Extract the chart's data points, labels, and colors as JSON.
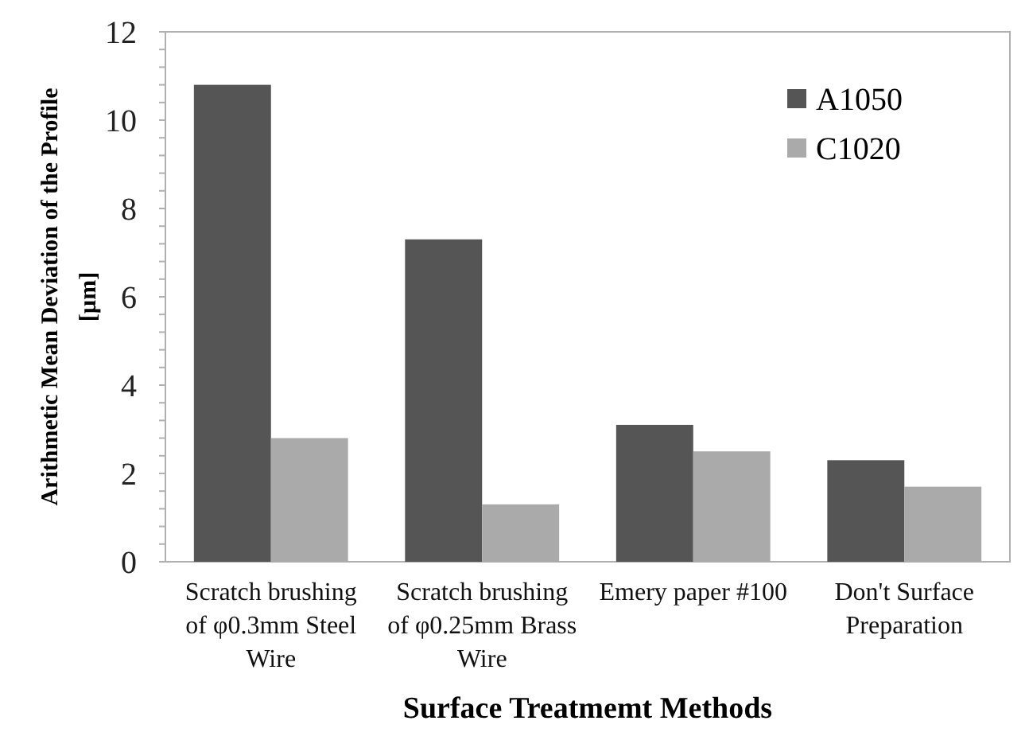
{
  "chart_data": {
    "type": "bar",
    "xlabel": "Surface Treatmemt Methods",
    "ylabel": "Arithmetic Mean Deviation of the Profile [µm]",
    "categories": [
      "Scratch brushing of φ0.3mm Steel Wire",
      "Scratch brushing of φ0.25mm Brass Wire",
      "Emery paper #100",
      "Don't Surface Preparation"
    ],
    "series": [
      {
        "name": "A1050",
        "color": "#555555",
        "values": [
          10.8,
          7.3,
          3.1,
          2.3
        ]
      },
      {
        "name": "C1020",
        "color": "#aaaaaa",
        "values": [
          2.8,
          1.3,
          2.5,
          1.7
        ]
      }
    ],
    "ylim": [
      0,
      12
    ],
    "yticks": [
      0,
      {
        "value": 0.4,
        "label": null
      },
      {
        "value": 0.8,
        "label": null
      },
      {
        "value": 1.2,
        "label": null
      },
      {
        "value": 1.6,
        "label": null
      },
      2,
      {
        "value": 2.4,
        "label": null
      },
      {
        "value": 2.8,
        "label": null
      },
      {
        "value": 3.2,
        "label": null
      },
      {
        "value": 3.6,
        "label": null
      },
      4,
      {
        "value": 4.4,
        "label": null
      },
      {
        "value": 4.8,
        "label": null
      },
      {
        "value": 5.2,
        "label": null
      },
      {
        "value": 5.6,
        "label": null
      },
      6,
      {
        "value": 6.4,
        "label": null
      },
      {
        "value": 6.8,
        "label": null
      },
      {
        "value": 7.2,
        "label": null
      },
      {
        "value": 7.6,
        "label": null
      },
      8,
      {
        "value": 8.4,
        "label": null
      },
      {
        "value": 8.8,
        "label": null
      },
      {
        "value": 9.2,
        "label": null
      },
      {
        "value": 9.6,
        "label": null
      },
      10,
      {
        "value": 10.4,
        "label": null
      },
      {
        "value": 10.8,
        "label": null
      },
      {
        "value": 11.2,
        "label": null
      },
      {
        "value": 11.6,
        "label": null
      },
      12
    ],
    "grid": false,
    "legend": "top right"
  }
}
